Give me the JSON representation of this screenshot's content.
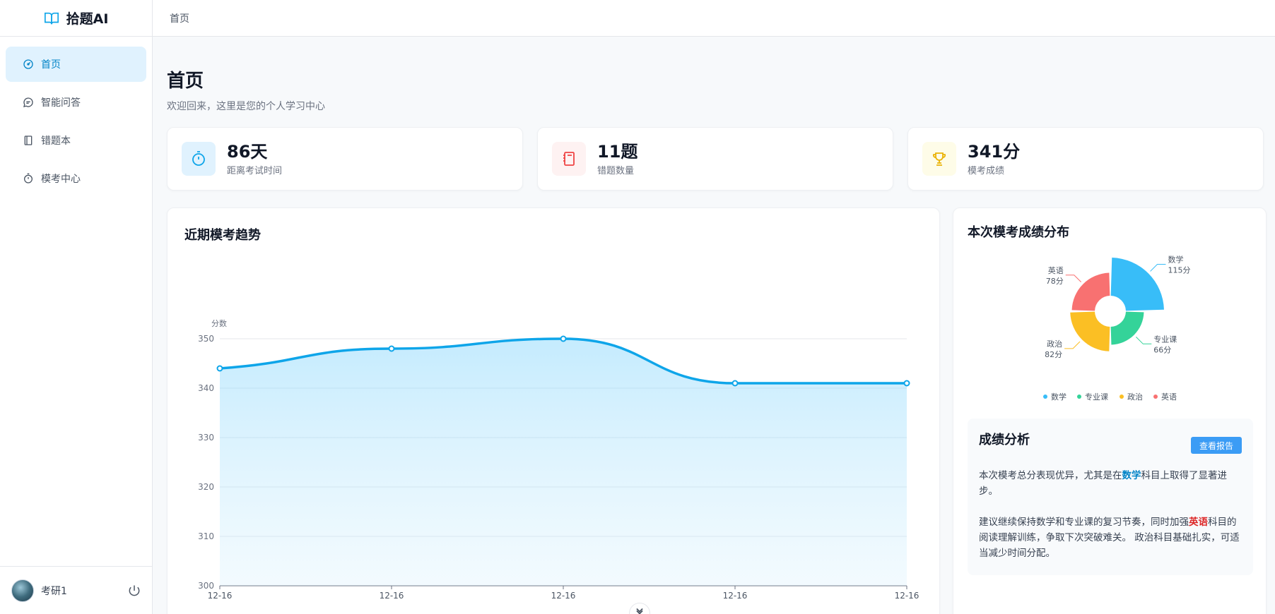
{
  "brand": {
    "name": "拾题AI"
  },
  "sidebar": {
    "items": [
      {
        "label": "首页",
        "icon": "dashboard-icon"
      },
      {
        "label": "智能问答",
        "icon": "chat-icon"
      },
      {
        "label": "错题本",
        "icon": "notebook-icon"
      },
      {
        "label": "模考中心",
        "icon": "stopwatch-icon"
      }
    ]
  },
  "user": {
    "name": "考研1"
  },
  "breadcrumb": "首页",
  "header": {
    "title": "首页",
    "subtitle": "欢迎回来，这里是您的个人学习中心"
  },
  "stats": [
    {
      "value": "86天",
      "label": "距离考试时间",
      "icon": "stopwatch-icon",
      "color": "#0ea5e9",
      "bg": "#e0f2fe"
    },
    {
      "value": "11题",
      "label": "错题数量",
      "icon": "notebook-icon",
      "color": "#ef4444",
      "bg": "#fef2f2"
    },
    {
      "value": "341分",
      "label": "模考成绩",
      "icon": "trophy-icon",
      "color": "#eab308",
      "bg": "#fefce8"
    }
  ],
  "trend": {
    "title": "近期模考趋势",
    "chart_data": {
      "type": "line",
      "ylabel": "分数",
      "ylim": [
        300,
        350
      ],
      "yticks": [
        300,
        310,
        320,
        330,
        340,
        350
      ],
      "x": [
        "12-16",
        "12-16",
        "12-16",
        "12-16",
        "12-16"
      ],
      "values": [
        344,
        348,
        350,
        341,
        341
      ],
      "smooth": true,
      "area": true,
      "color": "#0ea5e9"
    }
  },
  "distribution": {
    "title": "本次模考成绩分布",
    "chart_data": {
      "type": "pie",
      "style": "rose",
      "slices": [
        {
          "name": "数学",
          "value": 115,
          "label": "115分",
          "color": "#38bdf8"
        },
        {
          "name": "专业课",
          "value": 66,
          "label": "66分",
          "color": "#34d399"
        },
        {
          "name": "政治",
          "value": 82,
          "label": "82分",
          "color": "#fbbf24"
        },
        {
          "name": "英语",
          "value": 78,
          "label": "78分",
          "color": "#f87171"
        }
      ],
      "legend": "bottom"
    }
  },
  "analysis": {
    "title": "成绩分析",
    "button": "查看报告",
    "p1_pre": "本次模考总分表现优异，尤其是在",
    "p1_hl": "数学",
    "p1_post": "科目上取得了显著进步。",
    "p2_pre": "建议继续保持数学和专业课的复习节奏，同时加强",
    "p2_hl": "英语",
    "p2_post": "科目的阅读理解训练，争取下次突破难关。 政治科目基础扎实，可适当减少时间分配。"
  }
}
